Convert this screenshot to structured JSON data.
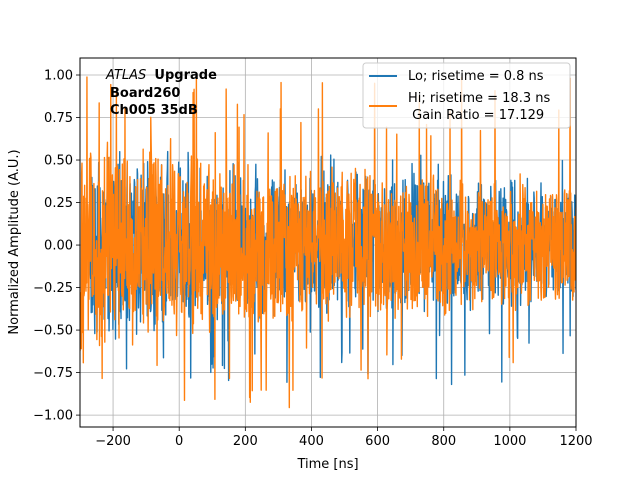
{
  "chart_data": {
    "type": "line",
    "title": "",
    "xlabel": "Time [ns]",
    "ylabel": "Normalized Amplitude (A.U.)",
    "xlim": [
      -300,
      1200
    ],
    "ylim": [
      -1.07,
      1.1
    ],
    "xticks": [
      -200,
      0,
      200,
      400,
      600,
      800,
      1000,
      1200
    ],
    "xtick_labels": [
      "−200",
      "0",
      "200",
      "400",
      "600",
      "800",
      "1000",
      "1200"
    ],
    "yticks": [
      -1.0,
      -0.75,
      -0.5,
      -0.25,
      0.0,
      0.25,
      0.5,
      0.75,
      1.0
    ],
    "ytick_labels": [
      "−1.00",
      "−0.75",
      "−0.50",
      "−0.25",
      "0.00",
      "0.25",
      "0.50",
      "0.75",
      "1.00"
    ],
    "grid": true,
    "legend_location": "top-right",
    "series": [
      {
        "name": "Lo; risetime = 0.8 ns",
        "color": "#1f77b4",
        "t_start": -270,
        "t_end": 1200,
        "noise_envelope_early": 0.65,
        "noise_envelope_late": 0.38,
        "peak_min": -0.83,
        "peak_max": 0.55
      },
      {
        "name": "Hi; risetime = 18.3 ns\n Gain Ratio = 17.129",
        "label_lines": [
          "Hi; risetime = 18.3 ns",
          " Gain Ratio = 17.129"
        ],
        "color": "#ff7f0e",
        "t_start": -300,
        "t_end": 1200,
        "noise_envelope_early": 0.75,
        "noise_envelope_late": 0.4,
        "peak_min": -0.97,
        "peak_max": 1.0
      }
    ],
    "annotation": {
      "atlas": "ATLAS",
      "upgrade": "Upgrade",
      "line2": "Board260",
      "line3": "Ch005 35dB"
    }
  }
}
